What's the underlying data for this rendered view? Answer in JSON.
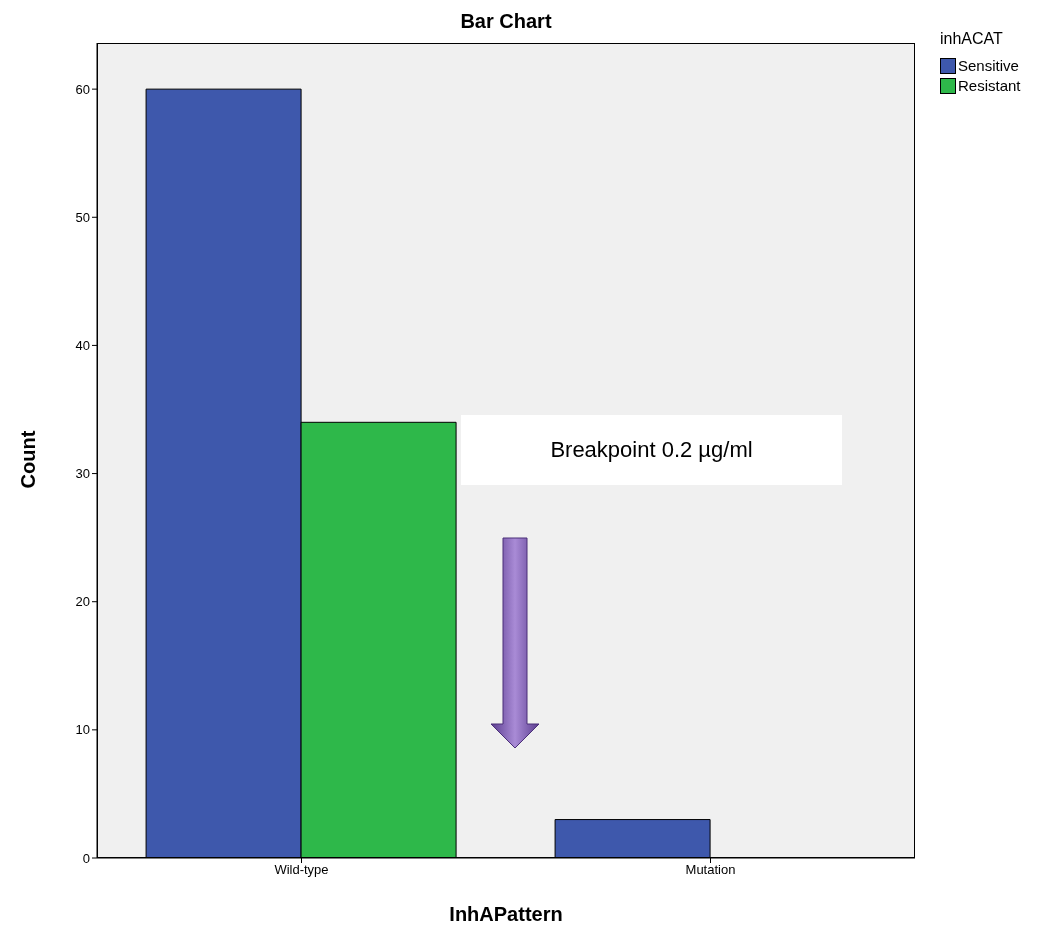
{
  "chart_data": {
    "type": "bar",
    "title": "Bar Chart",
    "xlabel": "InhAPattern",
    "ylabel": "Count",
    "legend_title": "inhACAT",
    "categories": [
      "Wild-type",
      "Mutation"
    ],
    "series": [
      {
        "name": "Sensitive",
        "color": "#3e58ac",
        "values": [
          60,
          3
        ]
      },
      {
        "name": "Resistant",
        "color": "#2eb84a",
        "values": [
          34,
          0
        ]
      }
    ],
    "ylim": [
      0,
      63.6
    ],
    "yticks": [
      0,
      10,
      20,
      30,
      40,
      50,
      60
    ],
    "grid": false,
    "legend": "top right",
    "annotations": [
      "Breakpoint 0.2 µg/ml"
    ]
  }
}
